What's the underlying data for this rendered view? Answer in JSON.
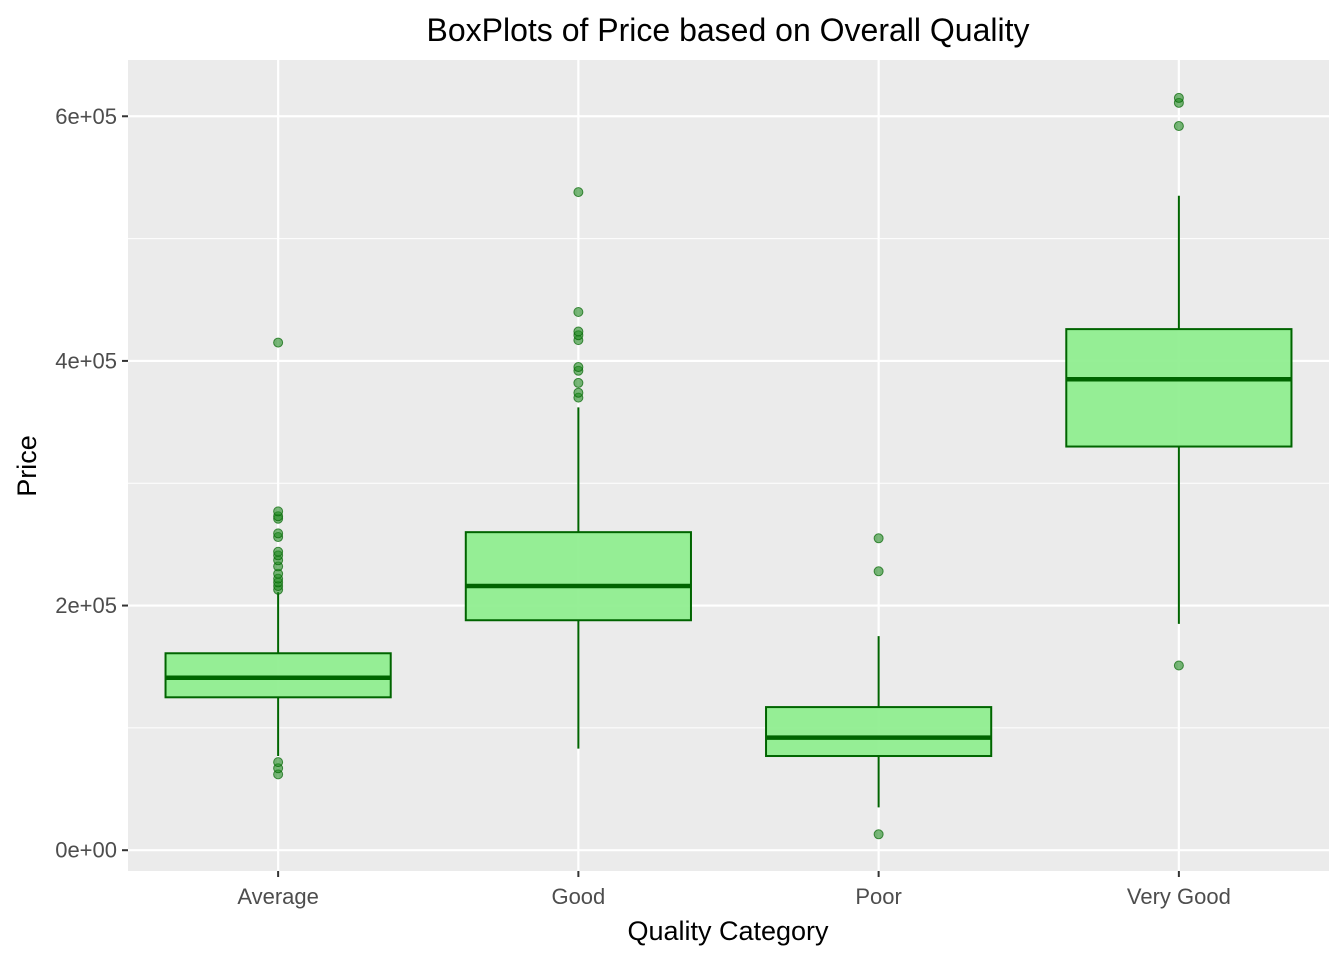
{
  "chart_data": {
    "type": "boxplot",
    "title": "BoxPlots of Price based on Overall Quality",
    "xlabel": "Quality Category",
    "ylabel": "Price",
    "ylim": [
      -17000,
      646000
    ],
    "yticks": [
      0,
      200000,
      400000,
      600000
    ],
    "ytick_labels": [
      "0e+00",
      "2e+05",
      "4e+05",
      "6e+05"
    ],
    "y_minor_ticks": [
      100000,
      300000,
      500000
    ],
    "grid": true,
    "legend": "none",
    "colors": {
      "panel_background": "#ebebeb",
      "grid": "#ffffff",
      "box_fill": "#90ee90",
      "box_stroke": "#006400",
      "outlier": "#228b22"
    },
    "categories": [
      "Average",
      "Good",
      "Poor",
      "Very Good"
    ],
    "boxes": [
      {
        "category": "Average",
        "whisker_low": 77000,
        "q1": 125000,
        "median": 141000,
        "q3": 161000,
        "whisker_high": 211000,
        "outliers": [
          62000,
          67000,
          72000,
          213000,
          216000,
          219000,
          222000,
          226000,
          232000,
          237000,
          241000,
          244000,
          256000,
          259000,
          271000,
          273000,
          277000,
          415000
        ]
      },
      {
        "category": "Good",
        "whisker_low": 83000,
        "q1": 188000,
        "median": 216000,
        "q3": 260000,
        "whisker_high": 362000,
        "outliers": [
          370000,
          374000,
          382000,
          392000,
          395000,
          417000,
          421000,
          424000,
          440000,
          538000
        ]
      },
      {
        "category": "Poor",
        "whisker_low": 35000,
        "q1": 77000,
        "median": 92000,
        "q3": 117000,
        "whisker_high": 175000,
        "outliers": [
          13000,
          228000,
          255000
        ]
      },
      {
        "category": "Very Good",
        "whisker_low": 185000,
        "q1": 330000,
        "median": 385000,
        "q3": 426000,
        "whisker_high": 535000,
        "outliers": [
          151000,
          592000,
          611000,
          615000
        ]
      }
    ]
  }
}
